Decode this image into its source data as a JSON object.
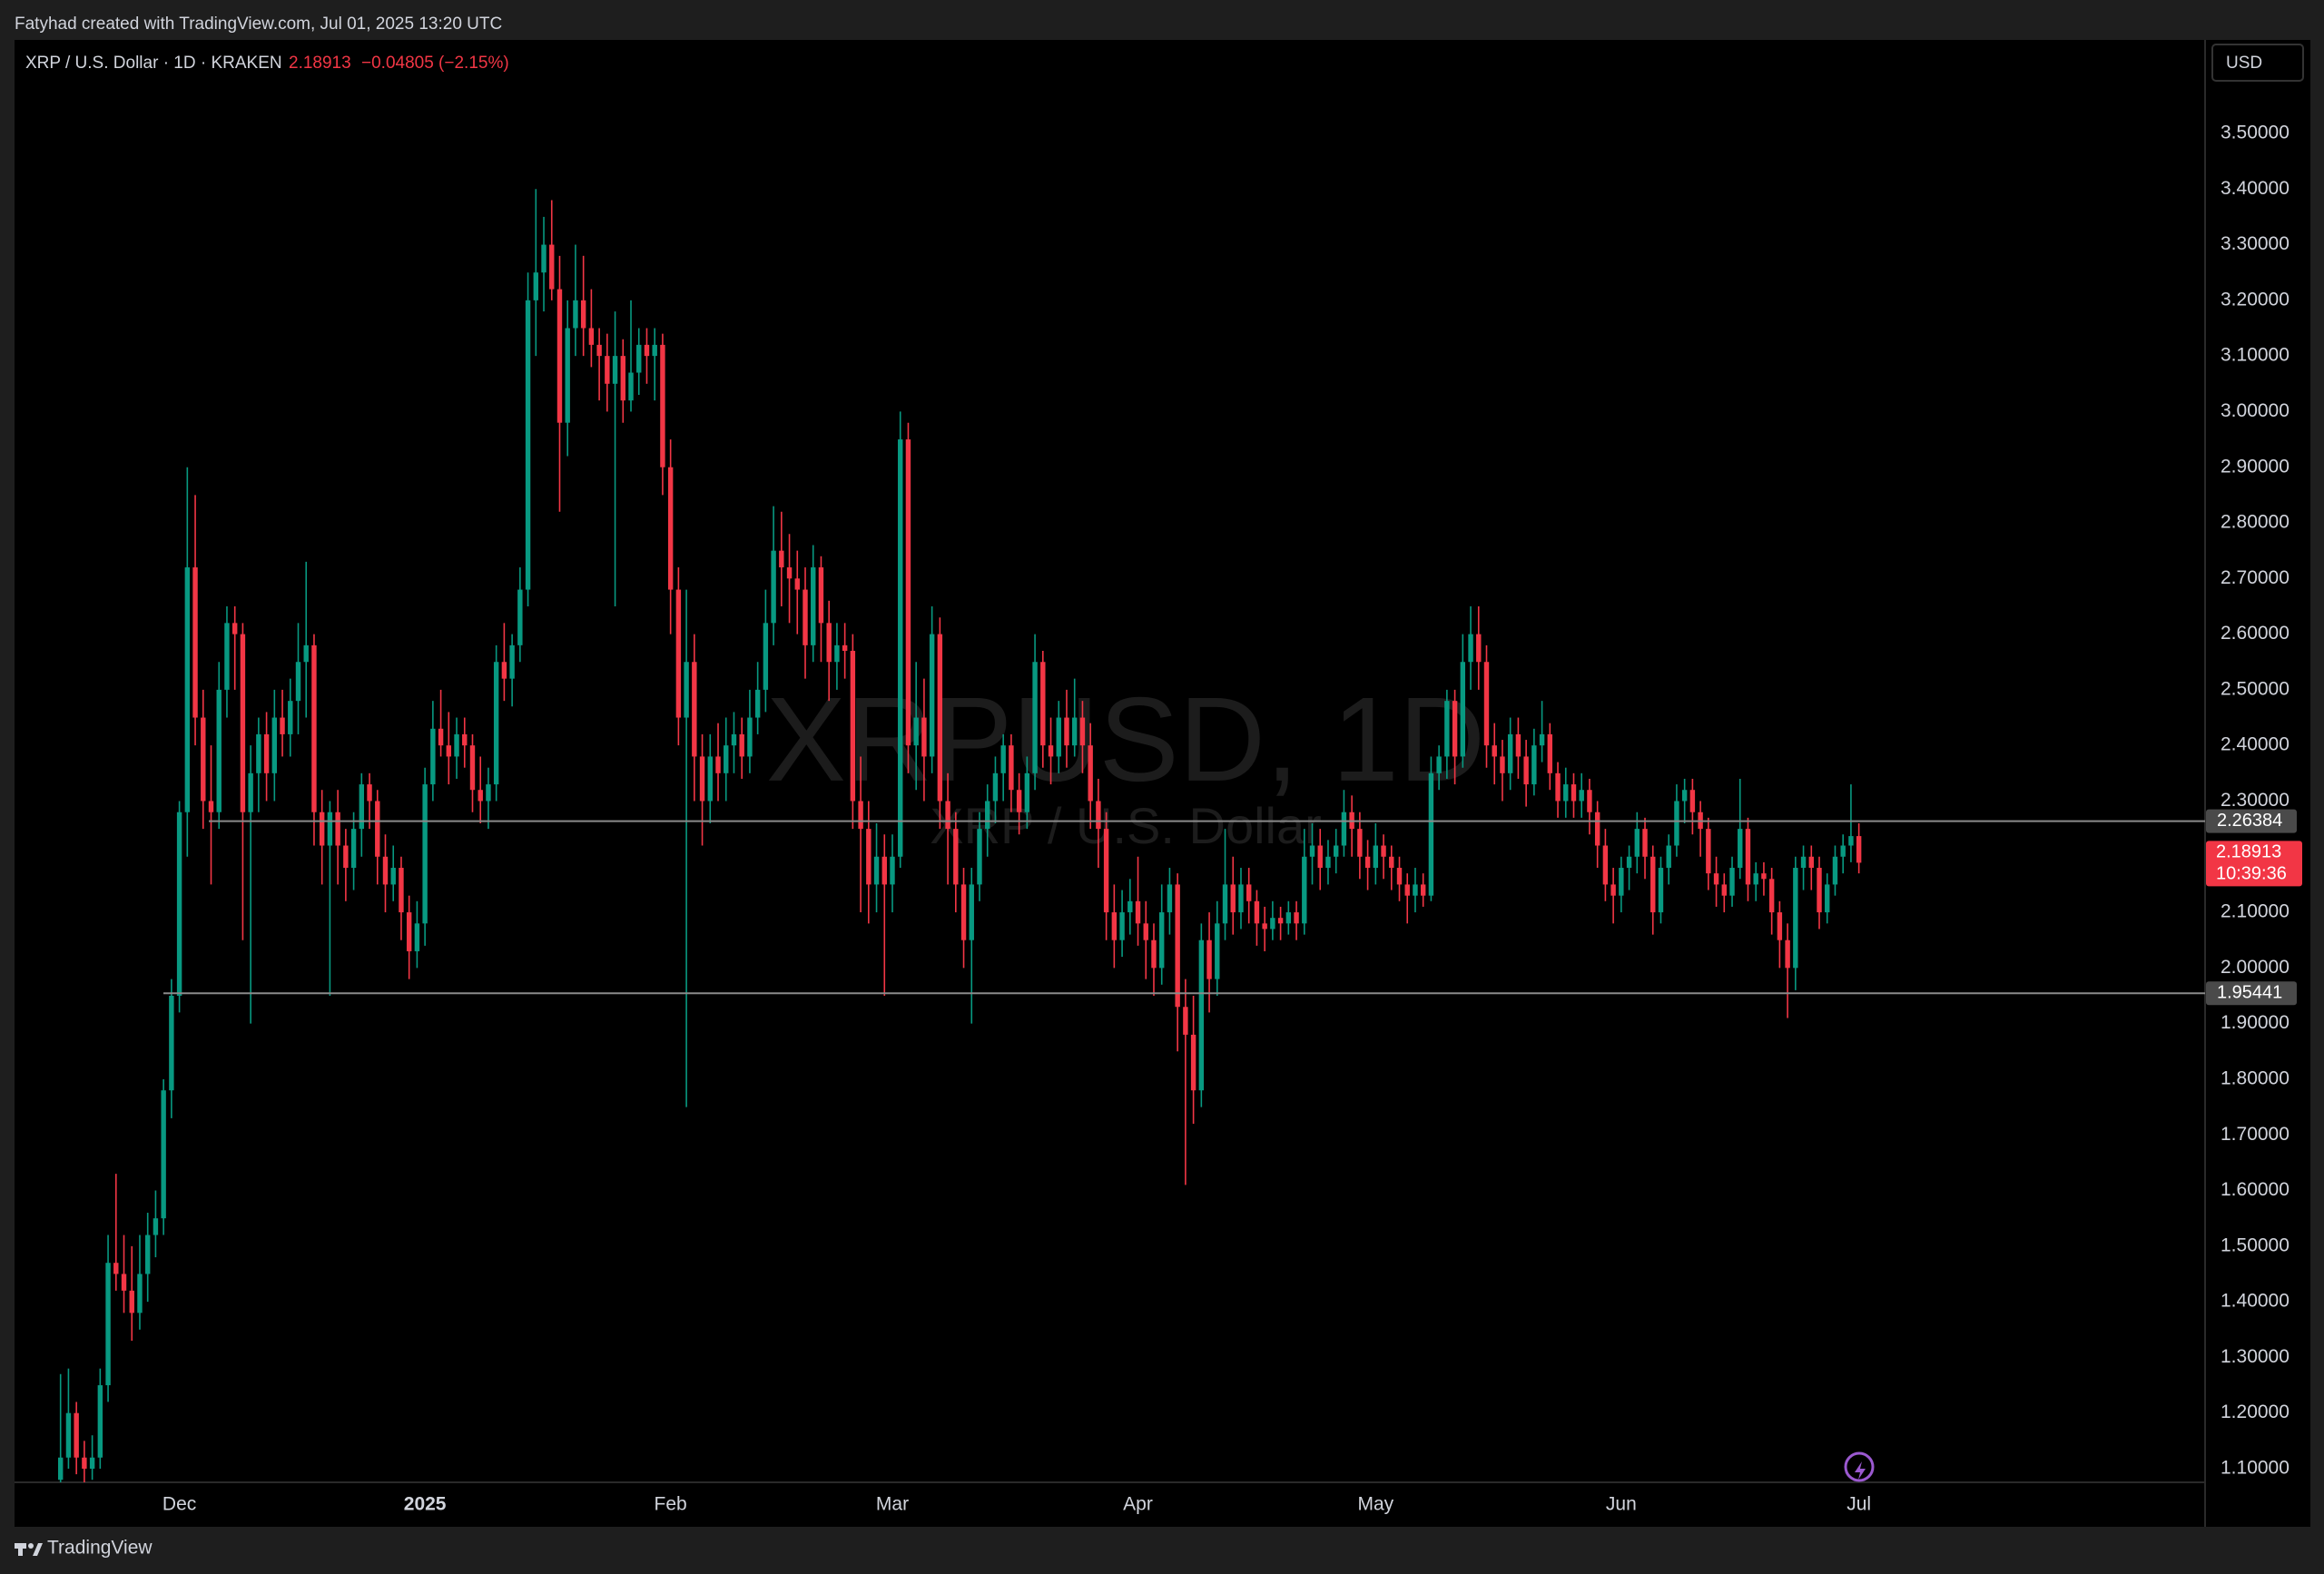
{
  "header": {
    "credit": "Fatyhad created with TradingView.com, Jul 01, 2025 13:20 UTC",
    "symbol": "XRP / U.S. Dollar · 1D · KRAKEN",
    "change": "−0.04805 (−2.15%)",
    "currency": "USD"
  },
  "watermark": {
    "title": "XRPUSD, 1D",
    "subtitle": "XRP / U.S. Dollar"
  },
  "footer": {
    "brand": "TradingView"
  },
  "chart_data": {
    "type": "candlestick",
    "up_color": "#089981",
    "down_color": "#f23645",
    "xlim": [
      -5.81,
      270.7
    ],
    "ylim": [
      1.0755,
      3.668
    ],
    "xticks": [
      {
        "value": 15,
        "label": "Dec"
      },
      {
        "value": 46,
        "label": "2025"
      },
      {
        "value": 77,
        "label": "Feb"
      },
      {
        "value": 105,
        "label": "Mar"
      },
      {
        "value": 136,
        "label": "Apr"
      },
      {
        "value": 166,
        "label": "May"
      },
      {
        "value": 197,
        "label": "Jun"
      },
      {
        "value": 227,
        "label": "Jul"
      }
    ],
    "yticks": [
      {
        "value": 1.1,
        "label": "1.10000"
      },
      {
        "value": 1.2,
        "label": "1.20000"
      },
      {
        "value": 1.3,
        "label": "1.30000"
      },
      {
        "value": 1.4,
        "label": "1.40000"
      },
      {
        "value": 1.5,
        "label": "1.50000"
      },
      {
        "value": 1.6,
        "label": "1.60000"
      },
      {
        "value": 1.7,
        "label": "1.70000"
      },
      {
        "value": 1.8,
        "label": "1.80000"
      },
      {
        "value": 1.9,
        "label": "1.90000"
      },
      {
        "value": 2.0,
        "label": "2.00000"
      },
      {
        "value": 2.1,
        "label": "2.10000"
      },
      {
        "value": 2.2,
        "label": "2.20000"
      },
      {
        "value": 2.3,
        "label": "2.30000"
      },
      {
        "value": 2.4,
        "label": "2.40000"
      },
      {
        "value": 2.5,
        "label": "2.50000"
      },
      {
        "value": 2.6,
        "label": "2.60000"
      },
      {
        "value": 2.7,
        "label": "2.70000"
      },
      {
        "value": 2.8,
        "label": "2.80000"
      },
      {
        "value": 2.9,
        "label": "2.90000"
      },
      {
        "value": 3.0,
        "label": "3.00000"
      },
      {
        "value": 3.1,
        "label": "3.10000"
      },
      {
        "value": 3.2,
        "label": "3.20000"
      },
      {
        "value": 3.3,
        "label": "3.30000"
      },
      {
        "value": 3.4,
        "label": "3.40000"
      },
      {
        "value": 3.5,
        "label": "3.50000"
      }
    ],
    "levels": [
      2.26384,
      1.95441
    ],
    "countdown": "10:39:36",
    "candles": [
      [
        1.08,
        1.27,
        1.05,
        1.12
      ],
      [
        1.12,
        1.28,
        1.1,
        1.2
      ],
      [
        1.2,
        1.22,
        1.09,
        1.12
      ],
      [
        1.12,
        1.15,
        1.07,
        1.1
      ],
      [
        1.1,
        1.16,
        1.08,
        1.12
      ],
      [
        1.12,
        1.28,
        1.1,
        1.25
      ],
      [
        1.25,
        1.52,
        1.22,
        1.47
      ],
      [
        1.47,
        1.63,
        1.42,
        1.45
      ],
      [
        1.45,
        1.52,
        1.38,
        1.42
      ],
      [
        1.42,
        1.5,
        1.33,
        1.38
      ],
      [
        1.38,
        1.52,
        1.35,
        1.45
      ],
      [
        1.45,
        1.56,
        1.4,
        1.52
      ],
      [
        1.52,
        1.6,
        1.48,
        1.55
      ],
      [
        1.55,
        1.8,
        1.52,
        1.78
      ],
      [
        1.78,
        1.98,
        1.73,
        1.95
      ],
      [
        1.95,
        2.3,
        1.92,
        2.28
      ],
      [
        2.28,
        2.9,
        2.2,
        2.72
      ],
      [
        2.72,
        2.85,
        2.4,
        2.45
      ],
      [
        2.45,
        2.5,
        2.25,
        2.3
      ],
      [
        2.3,
        2.4,
        2.15,
        2.28
      ],
      [
        2.28,
        2.55,
        2.25,
        2.5
      ],
      [
        2.5,
        2.65,
        2.45,
        2.62
      ],
      [
        2.62,
        2.65,
        2.5,
        2.6
      ],
      [
        2.6,
        2.62,
        2.05,
        2.28
      ],
      [
        2.28,
        2.4,
        1.9,
        2.35
      ],
      [
        2.35,
        2.45,
        2.28,
        2.42
      ],
      [
        2.42,
        2.46,
        2.3,
        2.35
      ],
      [
        2.35,
        2.5,
        2.3,
        2.45
      ],
      [
        2.45,
        2.5,
        2.38,
        2.42
      ],
      [
        2.42,
        2.52,
        2.38,
        2.48
      ],
      [
        2.48,
        2.62,
        2.42,
        2.55
      ],
      [
        2.55,
        2.73,
        2.45,
        2.58
      ],
      [
        2.58,
        2.6,
        2.22,
        2.28
      ],
      [
        2.28,
        2.32,
        2.15,
        2.22
      ],
      [
        2.22,
        2.3,
        1.95,
        2.28
      ],
      [
        2.28,
        2.32,
        2.15,
        2.22
      ],
      [
        2.22,
        2.25,
        2.12,
        2.18
      ],
      [
        2.18,
        2.28,
        2.14,
        2.25
      ],
      [
        2.25,
        2.35,
        2.2,
        2.33
      ],
      [
        2.33,
        2.35,
        2.25,
        2.3
      ],
      [
        2.3,
        2.32,
        2.15,
        2.2
      ],
      [
        2.2,
        2.24,
        2.1,
        2.15
      ],
      [
        2.15,
        2.22,
        2.12,
        2.18
      ],
      [
        2.18,
        2.2,
        2.05,
        2.1
      ],
      [
        2.1,
        2.13,
        1.98,
        2.03
      ],
      [
        2.03,
        2.12,
        2.0,
        2.08
      ],
      [
        2.08,
        2.36,
        2.04,
        2.33
      ],
      [
        2.33,
        2.48,
        2.3,
        2.43
      ],
      [
        2.43,
        2.5,
        2.38,
        2.4
      ],
      [
        2.4,
        2.46,
        2.33,
        2.38
      ],
      [
        2.38,
        2.45,
        2.34,
        2.42
      ],
      [
        2.42,
        2.45,
        2.36,
        2.4
      ],
      [
        2.4,
        2.42,
        2.28,
        2.32
      ],
      [
        2.32,
        2.38,
        2.26,
        2.3
      ],
      [
        2.3,
        2.36,
        2.25,
        2.33
      ],
      [
        2.33,
        2.58,
        2.3,
        2.55
      ],
      [
        2.55,
        2.62,
        2.48,
        2.52
      ],
      [
        2.52,
        2.6,
        2.47,
        2.58
      ],
      [
        2.58,
        2.72,
        2.55,
        2.68
      ],
      [
        2.68,
        3.25,
        2.65,
        3.2
      ],
      [
        3.2,
        3.4,
        3.1,
        3.25
      ],
      [
        3.25,
        3.35,
        3.18,
        3.3
      ],
      [
        3.3,
        3.38,
        3.2,
        3.22
      ],
      [
        3.22,
        3.28,
        2.82,
        2.98
      ],
      [
        2.98,
        3.2,
        2.92,
        3.15
      ],
      [
        3.15,
        3.3,
        3.1,
        3.2
      ],
      [
        3.2,
        3.28,
        3.1,
        3.15
      ],
      [
        3.15,
        3.22,
        3.08,
        3.12
      ],
      [
        3.12,
        3.15,
        3.02,
        3.1
      ],
      [
        3.1,
        3.14,
        3.0,
        3.05
      ],
      [
        3.05,
        3.18,
        2.65,
        3.1
      ],
      [
        3.1,
        3.13,
        2.98,
        3.02
      ],
      [
        3.02,
        3.2,
        3.0,
        3.07
      ],
      [
        3.07,
        3.15,
        3.03,
        3.12
      ],
      [
        3.12,
        3.15,
        3.05,
        3.1
      ],
      [
        3.1,
        3.15,
        3.02,
        3.12
      ],
      [
        3.12,
        3.14,
        2.85,
        2.9
      ],
      [
        2.9,
        2.95,
        2.6,
        2.68
      ],
      [
        2.68,
        2.72,
        2.4,
        2.45
      ],
      [
        2.45,
        2.68,
        1.75,
        2.55
      ],
      [
        2.55,
        2.6,
        2.3,
        2.38
      ],
      [
        2.38,
        2.42,
        2.22,
        2.3
      ],
      [
        2.3,
        2.42,
        2.26,
        2.38
      ],
      [
        2.38,
        2.44,
        2.3,
        2.35
      ],
      [
        2.35,
        2.45,
        2.3,
        2.4
      ],
      [
        2.4,
        2.46,
        2.35,
        2.42
      ],
      [
        2.42,
        2.45,
        2.34,
        2.38
      ],
      [
        2.38,
        2.5,
        2.35,
        2.45
      ],
      [
        2.45,
        2.55,
        2.42,
        2.5
      ],
      [
        2.5,
        2.68,
        2.46,
        2.62
      ],
      [
        2.62,
        2.83,
        2.58,
        2.75
      ],
      [
        2.75,
        2.82,
        2.65,
        2.72
      ],
      [
        2.72,
        2.78,
        2.62,
        2.7
      ],
      [
        2.7,
        2.75,
        2.6,
        2.68
      ],
      [
        2.68,
        2.72,
        2.52,
        2.58
      ],
      [
        2.58,
        2.76,
        2.55,
        2.72
      ],
      [
        2.72,
        2.74,
        2.55,
        2.62
      ],
      [
        2.62,
        2.66,
        2.48,
        2.55
      ],
      [
        2.55,
        2.62,
        2.5,
        2.58
      ],
      [
        2.58,
        2.62,
        2.52,
        2.57
      ],
      [
        2.57,
        2.6,
        2.25,
        2.3
      ],
      [
        2.3,
        2.38,
        2.1,
        2.25
      ],
      [
        2.25,
        2.3,
        2.08,
        2.15
      ],
      [
        2.15,
        2.26,
        2.1,
        2.2
      ],
      [
        2.2,
        2.24,
        1.95,
        2.15
      ],
      [
        2.15,
        2.24,
        2.1,
        2.2
      ],
      [
        2.2,
        3.0,
        2.18,
        2.95
      ],
      [
        2.95,
        2.98,
        2.35,
        2.4
      ],
      [
        2.4,
        2.55,
        2.32,
        2.45
      ],
      [
        2.45,
        2.52,
        2.3,
        2.38
      ],
      [
        2.38,
        2.65,
        2.35,
        2.6
      ],
      [
        2.6,
        2.63,
        2.25,
        2.3
      ],
      [
        2.3,
        2.35,
        2.15,
        2.25
      ],
      [
        2.25,
        2.28,
        2.1,
        2.15
      ],
      [
        2.15,
        2.18,
        2.0,
        2.05
      ],
      [
        2.05,
        2.18,
        1.9,
        2.15
      ],
      [
        2.15,
        2.28,
        2.12,
        2.25
      ],
      [
        2.25,
        2.33,
        2.2,
        2.3
      ],
      [
        2.3,
        2.38,
        2.26,
        2.35
      ],
      [
        2.35,
        2.42,
        2.3,
        2.4
      ],
      [
        2.4,
        2.42,
        2.28,
        2.32
      ],
      [
        2.32,
        2.35,
        2.24,
        2.28
      ],
      [
        2.28,
        2.38,
        2.25,
        2.35
      ],
      [
        2.35,
        2.6,
        2.32,
        2.55
      ],
      [
        2.55,
        2.57,
        2.36,
        2.4
      ],
      [
        2.4,
        2.45,
        2.33,
        2.38
      ],
      [
        2.38,
        2.48,
        2.35,
        2.45
      ],
      [
        2.45,
        2.5,
        2.36,
        2.4
      ],
      [
        2.4,
        2.52,
        2.38,
        2.45
      ],
      [
        2.45,
        2.48,
        2.35,
        2.4
      ],
      [
        2.4,
        2.44,
        2.25,
        2.3
      ],
      [
        2.3,
        2.34,
        2.18,
        2.25
      ],
      [
        2.25,
        2.28,
        2.05,
        2.1
      ],
      [
        2.1,
        2.15,
        2.0,
        2.05
      ],
      [
        2.05,
        2.14,
        2.02,
        2.1
      ],
      [
        2.1,
        2.16,
        2.06,
        2.12
      ],
      [
        2.12,
        2.2,
        2.04,
        2.08
      ],
      [
        2.08,
        2.12,
        1.98,
        2.05
      ],
      [
        2.05,
        2.08,
        1.95,
        2.0
      ],
      [
        2.0,
        2.15,
        1.97,
        2.1
      ],
      [
        2.1,
        2.18,
        2.06,
        2.15
      ],
      [
        2.15,
        2.17,
        1.85,
        1.93
      ],
      [
        1.93,
        1.98,
        1.61,
        1.88
      ],
      [
        1.88,
        1.95,
        1.72,
        1.78
      ],
      [
        1.78,
        2.08,
        1.75,
        2.05
      ],
      [
        2.05,
        2.1,
        1.92,
        1.98
      ],
      [
        1.98,
        2.12,
        1.95,
        2.08
      ],
      [
        2.08,
        2.25,
        2.05,
        2.15
      ],
      [
        2.15,
        2.2,
        2.06,
        2.1
      ],
      [
        2.1,
        2.18,
        2.07,
        2.15
      ],
      [
        2.15,
        2.18,
        2.08,
        2.12
      ],
      [
        2.12,
        2.14,
        2.04,
        2.08
      ],
      [
        2.08,
        2.11,
        2.03,
        2.07
      ],
      [
        2.07,
        2.12,
        2.05,
        2.09
      ],
      [
        2.09,
        2.11,
        2.05,
        2.08
      ],
      [
        2.08,
        2.12,
        2.06,
        2.1
      ],
      [
        2.1,
        2.12,
        2.05,
        2.08
      ],
      [
        2.08,
        2.25,
        2.06,
        2.2
      ],
      [
        2.2,
        2.26,
        2.15,
        2.22
      ],
      [
        2.22,
        2.25,
        2.14,
        2.18
      ],
      [
        2.18,
        2.23,
        2.15,
        2.2
      ],
      [
        2.2,
        2.25,
        2.17,
        2.22
      ],
      [
        2.22,
        2.32,
        2.2,
        2.28
      ],
      [
        2.28,
        2.31,
        2.2,
        2.25
      ],
      [
        2.25,
        2.28,
        2.16,
        2.2
      ],
      [
        2.2,
        2.23,
        2.14,
        2.18
      ],
      [
        2.18,
        2.26,
        2.15,
        2.22
      ],
      [
        2.22,
        2.24,
        2.16,
        2.2
      ],
      [
        2.2,
        2.22,
        2.14,
        2.18
      ],
      [
        2.18,
        2.2,
        2.12,
        2.15
      ],
      [
        2.15,
        2.17,
        2.08,
        2.13
      ],
      [
        2.13,
        2.18,
        2.1,
        2.15
      ],
      [
        2.15,
        2.17,
        2.11,
        2.13
      ],
      [
        2.13,
        2.38,
        2.12,
        2.35
      ],
      [
        2.35,
        2.4,
        2.32,
        2.38
      ],
      [
        2.38,
        2.5,
        2.34,
        2.48
      ],
      [
        2.48,
        2.5,
        2.33,
        2.38
      ],
      [
        2.38,
        2.6,
        2.36,
        2.55
      ],
      [
        2.55,
        2.65,
        2.5,
        2.6
      ],
      [
        2.6,
        2.65,
        2.5,
        2.55
      ],
      [
        2.55,
        2.58,
        2.36,
        2.4
      ],
      [
        2.4,
        2.44,
        2.33,
        2.38
      ],
      [
        2.38,
        2.41,
        2.3,
        2.35
      ],
      [
        2.35,
        2.45,
        2.32,
        2.42
      ],
      [
        2.42,
        2.45,
        2.34,
        2.38
      ],
      [
        2.38,
        2.41,
        2.29,
        2.33
      ],
      [
        2.33,
        2.43,
        2.31,
        2.4
      ],
      [
        2.4,
        2.48,
        2.37,
        2.42
      ],
      [
        2.42,
        2.44,
        2.32,
        2.35
      ],
      [
        2.35,
        2.37,
        2.27,
        2.3
      ],
      [
        2.3,
        2.36,
        2.27,
        2.33
      ],
      [
        2.33,
        2.35,
        2.27,
        2.3
      ],
      [
        2.3,
        2.35,
        2.27,
        2.32
      ],
      [
        2.32,
        2.34,
        2.24,
        2.28
      ],
      [
        2.28,
        2.3,
        2.18,
        2.22
      ],
      [
        2.22,
        2.25,
        2.12,
        2.15
      ],
      [
        2.15,
        2.18,
        2.08,
        2.13
      ],
      [
        2.13,
        2.2,
        2.1,
        2.18
      ],
      [
        2.18,
        2.22,
        2.14,
        2.2
      ],
      [
        2.2,
        2.28,
        2.17,
        2.25
      ],
      [
        2.25,
        2.27,
        2.16,
        2.2
      ],
      [
        2.2,
        2.22,
        2.06,
        2.1
      ],
      [
        2.1,
        2.2,
        2.08,
        2.18
      ],
      [
        2.18,
        2.24,
        2.15,
        2.22
      ],
      [
        2.22,
        2.33,
        2.2,
        2.3
      ],
      [
        2.3,
        2.34,
        2.26,
        2.32
      ],
      [
        2.32,
        2.34,
        2.24,
        2.28
      ],
      [
        2.28,
        2.3,
        2.2,
        2.25
      ],
      [
        2.25,
        2.27,
        2.14,
        2.17
      ],
      [
        2.17,
        2.2,
        2.11,
        2.15
      ],
      [
        2.15,
        2.17,
        2.1,
        2.13
      ],
      [
        2.13,
        2.2,
        2.11,
        2.18
      ],
      [
        2.18,
        2.34,
        2.16,
        2.25
      ],
      [
        2.25,
        2.27,
        2.12,
        2.15
      ],
      [
        2.15,
        2.19,
        2.12,
        2.17
      ],
      [
        2.17,
        2.19,
        2.13,
        2.16
      ],
      [
        2.16,
        2.18,
        2.06,
        2.1
      ],
      [
        2.1,
        2.12,
        2.0,
        2.05
      ],
      [
        2.05,
        2.08,
        1.91,
        2.0
      ],
      [
        2.0,
        2.2,
        1.96,
        2.18
      ],
      [
        2.18,
        2.22,
        2.14,
        2.2
      ],
      [
        2.2,
        2.22,
        2.14,
        2.18
      ],
      [
        2.18,
        2.2,
        2.07,
        2.1
      ],
      [
        2.1,
        2.17,
        2.08,
        2.15
      ],
      [
        2.15,
        2.22,
        2.13,
        2.2
      ],
      [
        2.2,
        2.24,
        2.17,
        2.22
      ],
      [
        2.22,
        2.33,
        2.19,
        2.237
      ],
      [
        2.237,
        2.26,
        2.17,
        2.18913
      ]
    ]
  }
}
